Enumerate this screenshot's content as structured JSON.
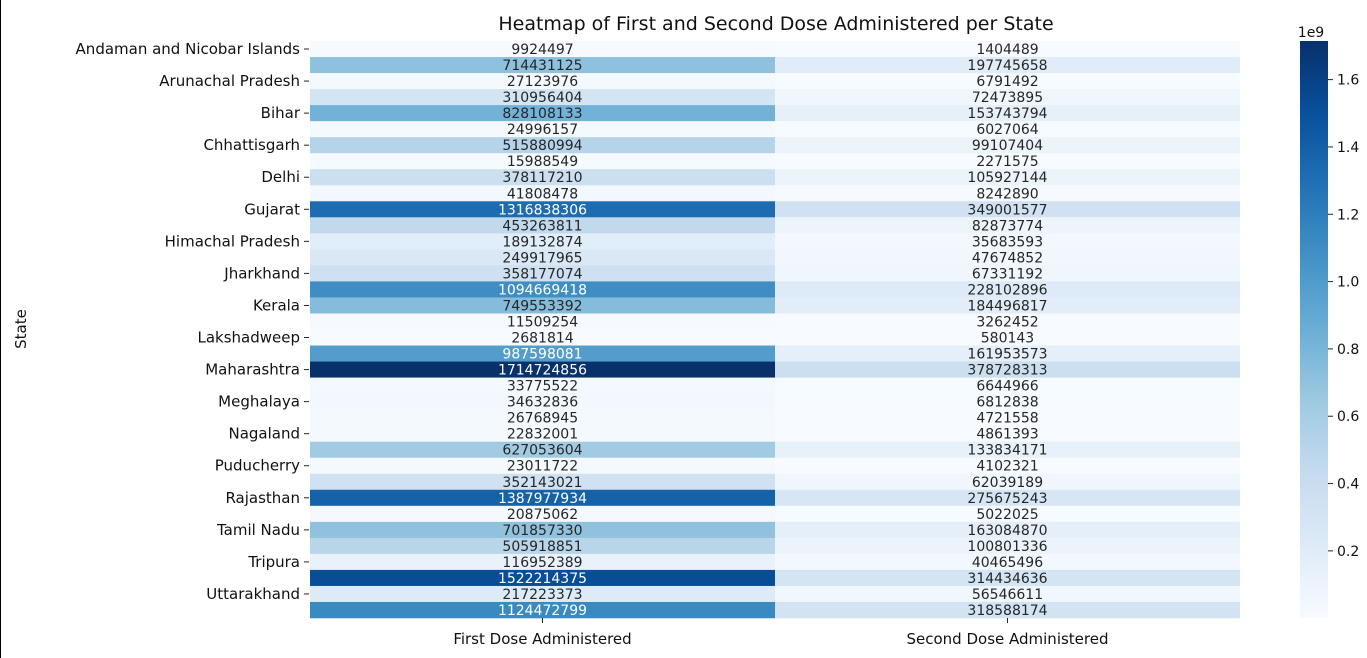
{
  "chart_data": {
    "type": "heatmap",
    "title": "Heatmap of First and Second Dose Administered per State",
    "xlabel": "",
    "ylabel": "State",
    "columns": [
      "First Dose Administered",
      "Second Dose Administered"
    ],
    "row_tick_labels": [
      "Andaman and Nicobar Islands",
      "Arunachal Pradesh",
      "Bihar",
      "Chhattisgarh",
      "Delhi",
      "Gujarat",
      "Himachal Pradesh",
      "Jharkhand",
      "Kerala",
      "Lakshadweep",
      "Maharashtra",
      "Meghalaya",
      "Nagaland",
      "Puducherry",
      "Rajasthan",
      "Tamil Nadu",
      "Tripura",
      "Uttarakhand"
    ],
    "values": [
      [
        9924497,
        1404489
      ],
      [
        714431125,
        197745658
      ],
      [
        27123976,
        6791492
      ],
      [
        310956404,
        72473895
      ],
      [
        828108133,
        153743794
      ],
      [
        24996157,
        6027064
      ],
      [
        515880994,
        99107404
      ],
      [
        15988549,
        2271575
      ],
      [
        378117210,
        105927144
      ],
      [
        41808478,
        8242890
      ],
      [
        1316838306,
        349001577
      ],
      [
        453263811,
        82873774
      ],
      [
        189132874,
        35683593
      ],
      [
        249917965,
        47674852
      ],
      [
        358177074,
        67331192
      ],
      [
        1094669418,
        228102896
      ],
      [
        749553392,
        184496817
      ],
      [
        11509254,
        3262452
      ],
      [
        2681814,
        580143
      ],
      [
        987598081,
        161953573
      ],
      [
        1714724856,
        378728313
      ],
      [
        33775522,
        6644966
      ],
      [
        34632836,
        6812838
      ],
      [
        26768945,
        4721558
      ],
      [
        22832001,
        4861393
      ],
      [
        627053604,
        133834171
      ],
      [
        23011722,
        4102321
      ],
      [
        352143021,
        62039189
      ],
      [
        1387977934,
        275675243
      ],
      [
        20875062,
        5022025
      ],
      [
        701857330,
        163084870
      ],
      [
        505918851,
        100801336
      ],
      [
        116952389,
        40465496
      ],
      [
        1522214375,
        314434636
      ],
      [
        217223373,
        56546611
      ],
      [
        1124472799,
        318588174
      ]
    ],
    "colorbar": {
      "colormap": "Blues",
      "min": 580143,
      "max": 1714724856,
      "ticks": [
        0.2,
        0.4,
        0.6,
        0.8,
        1.0,
        1.2,
        1.4,
        1.6
      ],
      "tick_labels": [
        "0.2",
        "0.4",
        "0.6",
        "0.8",
        "1.0",
        "1.2",
        "1.4",
        "1.6"
      ],
      "exponent_label": "1e9"
    }
  }
}
